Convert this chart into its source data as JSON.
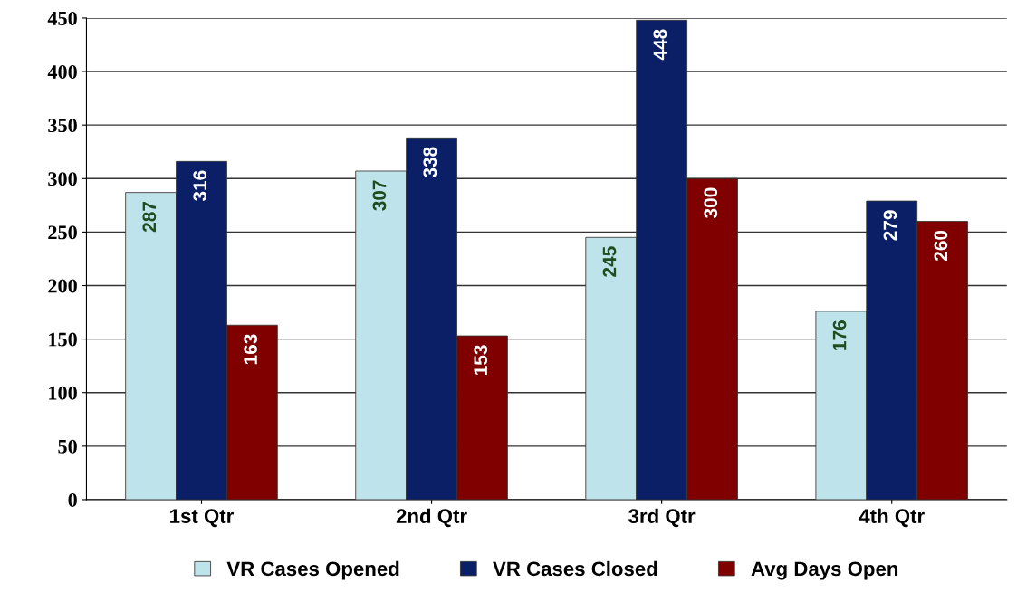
{
  "chart_data": {
    "type": "bar",
    "categories": [
      "1st Qtr",
      "2nd Qtr",
      "3rd Qtr",
      "4th Qtr"
    ],
    "series": [
      {
        "name": "VR Cases Opened",
        "color": "#bfe3ea",
        "values": [
          287,
          307,
          245,
          176
        ]
      },
      {
        "name": "VR Cases Closed",
        "color": "#0b1f66",
        "values": [
          316,
          338,
          448,
          279
        ]
      },
      {
        "name": "Avg Days Open",
        "color": "#800000",
        "values": [
          163,
          153,
          300,
          260
        ]
      }
    ],
    "ylim": [
      0,
      450
    ],
    "yticks": [
      0,
      50,
      100,
      150,
      200,
      250,
      300,
      350,
      400,
      450
    ],
    "grid": "y",
    "legend": "bottom",
    "data_labels": true
  }
}
